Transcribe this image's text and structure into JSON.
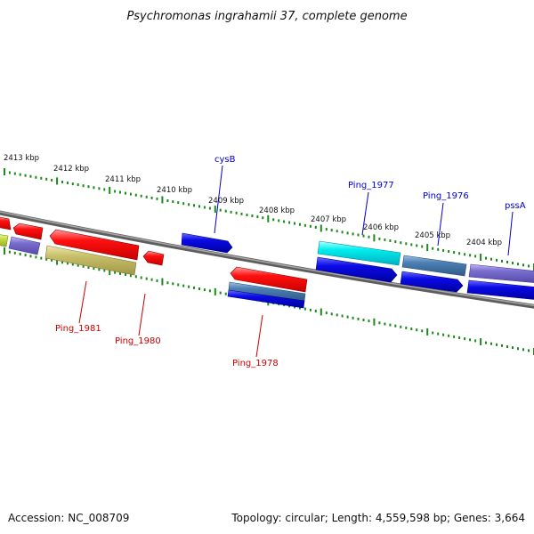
{
  "title": "Psychromonas ingrahamii 37, complete genome",
  "accession": "Accession: NC_008709",
  "summary": "Topology: circular; Length: 4,559,598 bp; Genes: 3,664",
  "colors": {
    "red": "#ee0000",
    "blue": "#0a0ae6",
    "cyan": "#00e6e6",
    "steel": "#4d7fb3",
    "lavender": "#7a6fcf",
    "khaki": "#c8bf6a",
    "yellowgreen": "#c8e04a",
    "backbone": "#7a7a7a",
    "tick": "#1a8a1a",
    "label_blue": "#0000cc",
    "label_red": "#cc0000"
  },
  "kbp_labels": [
    "2413 kbp",
    "2412 kbp",
    "2411 kbp",
    "2410 kbp",
    "2409 kbp",
    "2408 kbp",
    "2407 kbp",
    "2406 kbp",
    "2405 kbp",
    "2404 kbp"
  ],
  "gene_labels_top": [
    "cysB",
    "Ping_1977",
    "Ping_1976",
    "pssA"
  ],
  "gene_labels_bottom": [
    "Ping_1981",
    "Ping_1980",
    "Ping_1978"
  ]
}
